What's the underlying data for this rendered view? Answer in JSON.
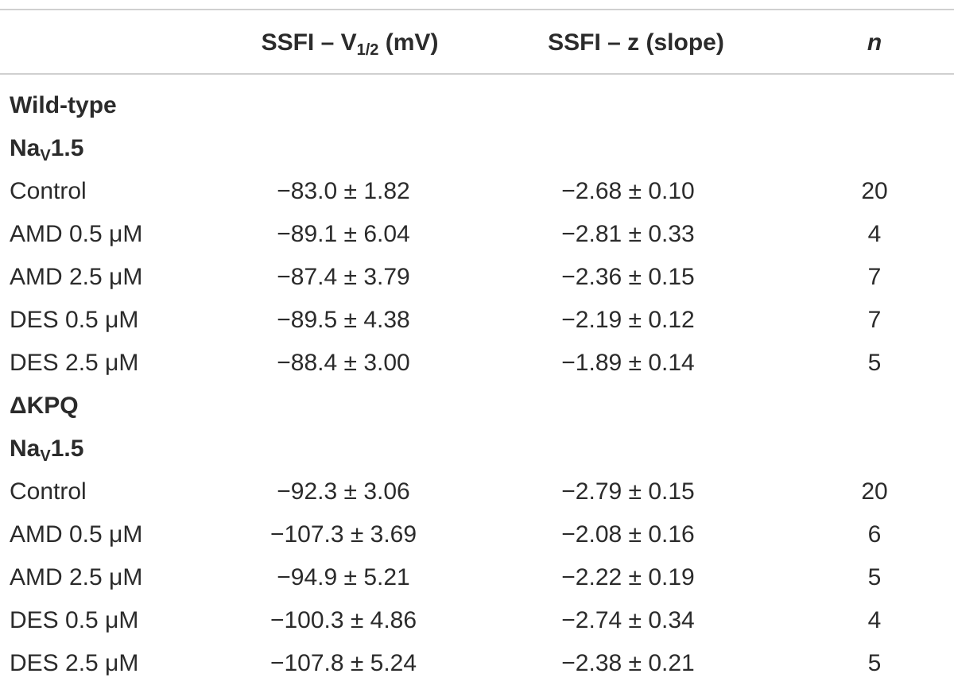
{
  "table": {
    "header": [
      {
        "text": "SSFI – V",
        "sub": "1/2",
        "after": " (mV)"
      },
      {
        "text": "SSFI – z (slope)"
      },
      {
        "text": "n",
        "italic": true
      }
    ],
    "rows": [
      {
        "section": true,
        "cells": [
          {
            "text": "Wild-type"
          }
        ]
      },
      {
        "section": true,
        "cells": [
          {
            "text": "Na",
            "sub": "V",
            "after": "1.5"
          }
        ]
      },
      {
        "cells": [
          "Control",
          "−83.0 ± 1.82",
          "−2.68 ± 0.10",
          20
        ]
      },
      {
        "cells": [
          "AMD 0.5 μM",
          "−89.1 ± 6.04",
          "−2.81 ± 0.33",
          4
        ]
      },
      {
        "cells": [
          "AMD 2.5 μM",
          "−87.4 ± 3.79",
          "−2.36 ± 0.15",
          7
        ]
      },
      {
        "cells": [
          "DES 0.5 μM",
          "−89.5 ± 4.38",
          "−2.19 ± 0.12",
          7
        ]
      },
      {
        "cells": [
          "DES 2.5 μM",
          "−88.4 ± 3.00",
          "−1.89 ± 0.14",
          5
        ]
      },
      {
        "section": true,
        "cells": [
          {
            "text": "ΔKPQ"
          }
        ]
      },
      {
        "section": true,
        "cells": [
          {
            "text": "Na",
            "sub": "V",
            "after": "1.5"
          }
        ]
      },
      {
        "cells": [
          "Control",
          "−92.3 ± 3.06",
          "−2.79 ± 0.15",
          20
        ]
      },
      {
        "cells": [
          "AMD 0.5 μM",
          "−107.3 ± 3.69",
          "−2.08 ± 0.16",
          6
        ]
      },
      {
        "cells": [
          "AMD 2.5 μM",
          "−94.9 ± 5.21",
          "−2.22 ± 0.19",
          5
        ]
      },
      {
        "cells": [
          "DES 0.5 μM",
          "−100.3 ± 4.86",
          "−2.74 ± 0.34",
          4
        ]
      },
      {
        "cells": [
          "DES 2.5 μM",
          "−107.8 ± 5.24",
          "−2.38 ± 0.21",
          5
        ]
      }
    ]
  }
}
